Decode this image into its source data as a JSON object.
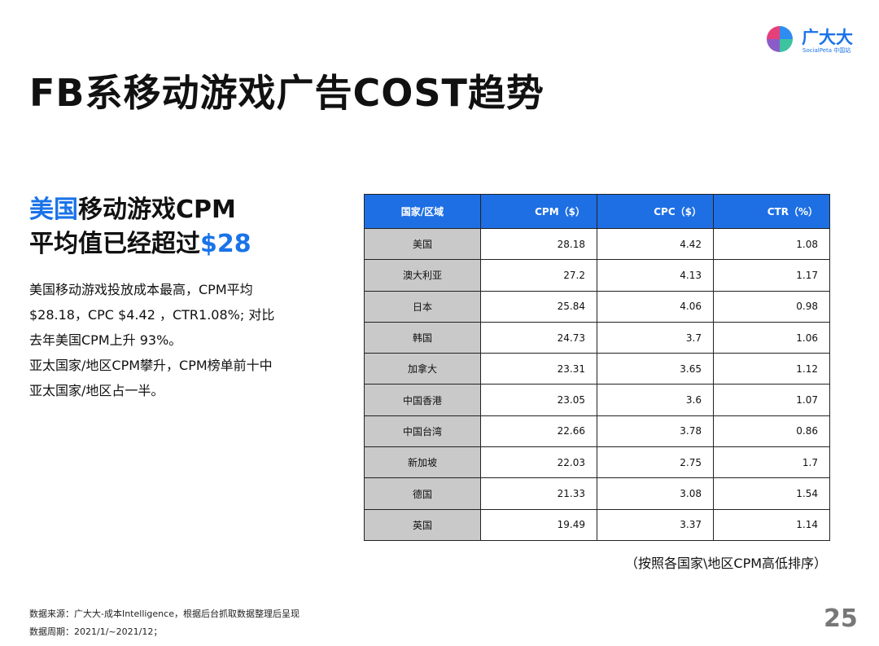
{
  "logo": {
    "name": "广大大",
    "sub": "SocialPeta 中国站"
  },
  "title": "FB系移动游戏广告COST趋势",
  "subtitle": {
    "line1": [
      "美国",
      "移动游戏CPM"
    ],
    "line2": [
      "平均值已经超过",
      "$28"
    ]
  },
  "body": [
    "美国移动游戏投放成本最高，CPM平均",
    "$28.18，CPC $4.42 ，CTR1.08%; 对比",
    "去年美国CPM上升 93%。",
    "亚太国家/地区CPM攀升，CPM榜单前十中",
    "亚太国家/地区占一半。"
  ],
  "table": {
    "header": [
      "国家/区域",
      "CPM（$）",
      "CPC（$）",
      "CTR（%）"
    ],
    "rows": [
      [
        "美国",
        "28.18",
        "4.42",
        "1.08"
      ],
      [
        "澳大利亚",
        "27.2",
        "4.13",
        "1.17"
      ],
      [
        "日本",
        "25.84",
        "4.06",
        "0.98"
      ],
      [
        "韩国",
        "24.73",
        "3.7",
        "1.06"
      ],
      [
        "加拿大",
        "23.31",
        "3.65",
        "1.12"
      ],
      [
        "中国香港",
        "23.05",
        "3.6",
        "1.07"
      ],
      [
        "中国台湾",
        "22.66",
        "3.78",
        "0.86"
      ],
      [
        "新加坡",
        "22.03",
        "2.75",
        "1.7"
      ],
      [
        "德国",
        "21.33",
        "3.08",
        "1.54"
      ],
      [
        "英国",
        "19.49",
        "3.37",
        "1.14"
      ]
    ]
  },
  "note": "（按照各国家\\地区CPM高低排序）",
  "footer": {
    "source": "数据来源：广大大-成本Intelligence，根据后台抓取数据整理后呈现",
    "period": "数据周期：2021/1/~2021/12；"
  },
  "page_number": "25"
}
